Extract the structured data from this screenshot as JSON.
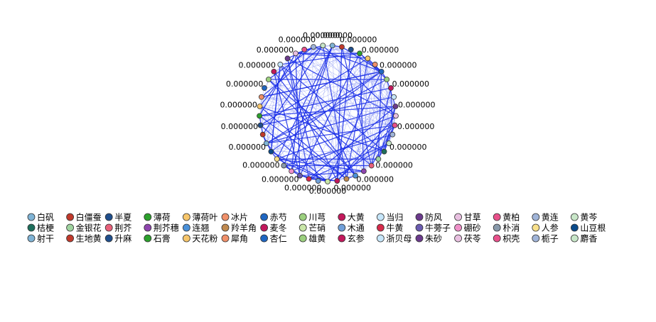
{
  "chart_data": {
    "type": "network",
    "nodes": [
      {
        "name": "白矾",
        "color": "#7fb3d5",
        "label": "0.000000"
      },
      {
        "name": "白僵蚕",
        "color": "#c0392b",
        "label": null
      },
      {
        "name": "半夏",
        "color": "#1f4e8c",
        "label": "0.000000"
      },
      {
        "name": "薄荷",
        "color": "#2ca02c",
        "label": null
      },
      {
        "name": "薄荷叶",
        "color": "#f7c66b",
        "label": "0.000000"
      },
      {
        "name": "冰片",
        "color": "#f0906a",
        "label": null
      },
      {
        "name": "赤芍",
        "color": "#1f66c1",
        "label": "0.000000"
      },
      {
        "name": "川芎",
        "color": "#9bcf7e",
        "label": null
      },
      {
        "name": "大黄",
        "color": "#c2185b",
        "label": "0.000000"
      },
      {
        "name": "当归",
        "color": "#c6e6fa",
        "label": null
      },
      {
        "name": "防风",
        "color": "#6b3a8c",
        "label": "0.000000"
      },
      {
        "name": "甘草",
        "color": "#e8c0e0",
        "label": null
      },
      {
        "name": "黄柏",
        "color": "#e8508a",
        "label": "0.000000"
      },
      {
        "name": "黄连",
        "color": "#a0b4d8",
        "label": null
      },
      {
        "name": "黄芩",
        "color": "#c8e6c8",
        "label": "0.000000"
      },
      {
        "name": "桔梗",
        "color": "#1e6f5c",
        "label": null
      },
      {
        "name": "金银花",
        "color": "#9fd39f",
        "label": "0.000000"
      },
      {
        "name": "荆芥",
        "color": "#e8607a",
        "label": null
      },
      {
        "name": "荆芥穗",
        "color": "#8e44ad",
        "label": "0.000000"
      },
      {
        "name": "连翘",
        "color": "#4a90d9",
        "label": null
      },
      {
        "name": "羚羊角",
        "color": "#c08a50",
        "label": "0.000000"
      },
      {
        "name": "麦冬",
        "color": "#c2185b",
        "label": null
      },
      {
        "name": "芒硝",
        "color": "#c9e6a8",
        "label": "0.000000"
      },
      {
        "name": "木通",
        "color": "#6f9fd8",
        "label": null
      },
      {
        "name": "牛黄",
        "color": "#d62a4a",
        "label": "0.000000"
      },
      {
        "name": "牛蒡子",
        "color": "#6a5bb0",
        "label": null
      },
      {
        "name": "硼砂",
        "color": "#ef90c8",
        "label": "0.000000"
      },
      {
        "name": "朴消",
        "color": "#8899aa",
        "label": null
      },
      {
        "name": "人参",
        "color": "#f8e08a",
        "label": "0.000000"
      },
      {
        "name": "山豆根",
        "color": "#0a4a8a",
        "label": null
      },
      {
        "name": "射干",
        "color": "#7fb3d5",
        "label": "0.000000"
      },
      {
        "name": "生地黄",
        "color": "#c0392b",
        "label": null
      },
      {
        "name": "升麻",
        "color": "#1f4e8c",
        "label": "0.000000"
      },
      {
        "name": "石膏",
        "color": "#2ca02c",
        "label": null
      },
      {
        "name": "天花粉",
        "color": "#f7c66b",
        "label": "0.000000"
      },
      {
        "name": "犀角",
        "color": "#f0906a",
        "label": null
      },
      {
        "name": "杏仁",
        "color": "#1f66c1",
        "label": "0.000000"
      },
      {
        "name": "雄黄",
        "color": "#9bcf7e",
        "label": null
      },
      {
        "name": "玄参",
        "color": "#c2185b",
        "label": "0.000000"
      },
      {
        "name": "浙贝母",
        "color": "#c6e6fa",
        "label": null
      },
      {
        "name": "朱砂",
        "color": "#6b3a8c",
        "label": "0.000000"
      },
      {
        "name": "茯苓",
        "color": "#e8c0e0",
        "label": null
      },
      {
        "name": "枳壳",
        "color": "#e8508a",
        "label": "0.000000"
      },
      {
        "name": "栀子",
        "color": "#a0b4d8",
        "label": null
      },
      {
        "name": "麝香",
        "color": "#c8e6c8",
        "label": "0.000000"
      }
    ]
  }
}
